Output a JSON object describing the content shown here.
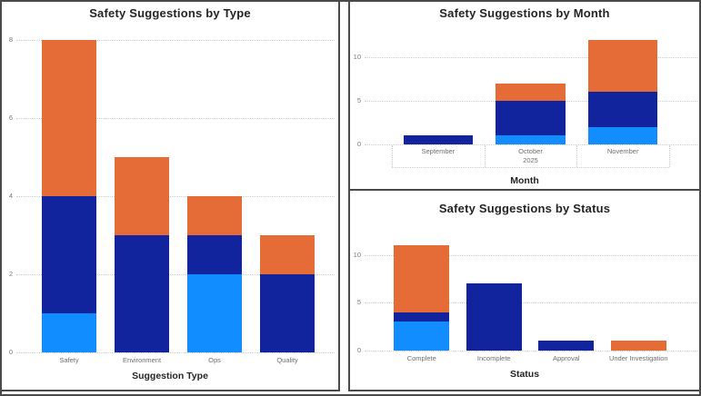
{
  "app": {
    "kind": "bi-dashboard",
    "background": "#ffffff",
    "panel_border_color": "#4a4a4a"
  },
  "colors": {
    "light_blue": "#118DFF",
    "dark_blue": "#12239E",
    "orange": "#E66C37",
    "gridline": "#cfcdcb",
    "tick_text": "#7a7a7a",
    "title_text": "#252423"
  },
  "chart_data": [
    {
      "type": "bar",
      "stacked": true,
      "title": "Safety Suggestions by Type",
      "xlabel": "Suggestion Type",
      "ylabel": "",
      "categories": [
        "Safety",
        "Environment",
        "Ops",
        "Quality"
      ],
      "series": [
        {
          "name": "light-blue",
          "color": "#118DFF",
          "values": [
            1,
            0,
            2,
            0
          ]
        },
        {
          "name": "dark-blue",
          "color": "#12239E",
          "values": [
            3,
            3,
            1,
            2
          ]
        },
        {
          "name": "orange",
          "color": "#E66C37",
          "values": [
            4,
            2,
            1,
            1
          ]
        }
      ],
      "totals": [
        8,
        5,
        4,
        3
      ],
      "yticks": [
        0,
        2,
        4,
        6,
        8
      ],
      "ylim": [
        0,
        8.14
      ],
      "grid": "dotted-horizontal",
      "legend": "none"
    },
    {
      "type": "bar",
      "stacked": true,
      "title": "Safety Suggestions by Month",
      "xlabel": "Month",
      "ylabel": "",
      "categories": [
        "September",
        "October",
        "November"
      ],
      "year_label": "2025",
      "series": [
        {
          "name": "light-blue",
          "color": "#118DFF",
          "values": [
            0,
            1,
            2
          ]
        },
        {
          "name": "dark-blue",
          "color": "#12239E",
          "values": [
            1,
            4,
            4
          ]
        },
        {
          "name": "orange",
          "color": "#E66C37",
          "values": [
            0,
            2,
            6
          ]
        }
      ],
      "totals": [
        1,
        7,
        12
      ],
      "yticks": [
        0,
        5,
        10
      ],
      "ylim": [
        0,
        12.6
      ],
      "grid": "dotted-horizontal",
      "legend": "none"
    },
    {
      "type": "bar",
      "stacked": true,
      "title": "Safety Suggestions by Status",
      "xlabel": "Status",
      "ylabel": "",
      "categories": [
        "Complete",
        "Incomplete",
        "Approval",
        "Under Investigation"
      ],
      "series": [
        {
          "name": "light-blue",
          "color": "#118DFF",
          "values": [
            3,
            0,
            0,
            0
          ]
        },
        {
          "name": "dark-blue",
          "color": "#12239E",
          "values": [
            1,
            7,
            1,
            0
          ]
        },
        {
          "name": "orange",
          "color": "#E66C37",
          "values": [
            7,
            0,
            0,
            1
          ]
        }
      ],
      "totals": [
        11,
        7,
        1,
        1
      ],
      "yticks": [
        0,
        5,
        10
      ],
      "ylim": [
        0,
        13.7
      ],
      "grid": "dotted-horizontal",
      "legend": "none"
    }
  ]
}
